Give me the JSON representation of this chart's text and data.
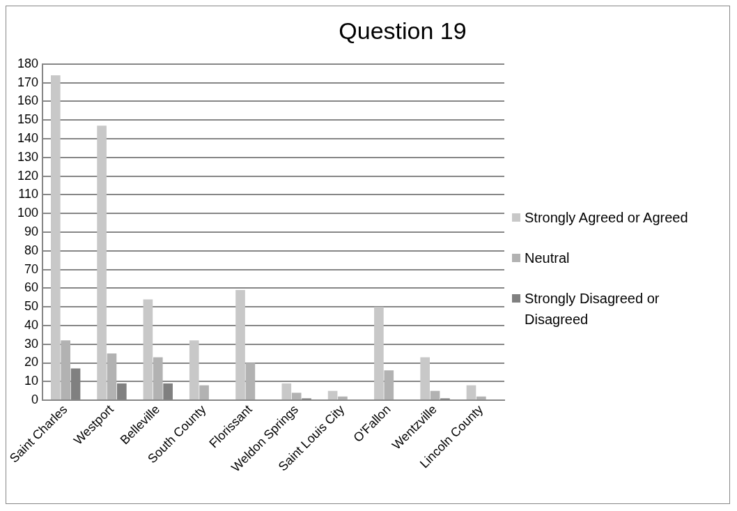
{
  "chart_data": {
    "type": "bar",
    "title": "Question 19",
    "categories": [
      "Saint Charles",
      "Westport",
      "Belleville",
      "South County",
      "Florissant",
      "Weldon Springs",
      "Saint Louis City",
      "O'Fallon",
      "Wentzville",
      "Lincoln County"
    ],
    "series": [
      {
        "name": "Strongly Agreed or Agreed",
        "color": "#c8c8c8",
        "values": [
          174,
          147,
          54,
          32,
          59,
          9,
          5,
          50,
          23,
          8
        ]
      },
      {
        "name": "Neutral",
        "color": "#b2b2b2",
        "values": [
          32,
          25,
          23,
          8,
          20,
          4,
          2,
          16,
          5,
          2
        ]
      },
      {
        "name": "Strongly Disagreed or Disagreed",
        "color": "#808080",
        "values": [
          17,
          9,
          9,
          0,
          0,
          1,
          0,
          0,
          1,
          0
        ]
      }
    ],
    "ylim": [
      0,
      180
    ],
    "yticks": [
      0,
      10,
      20,
      30,
      40,
      50,
      60,
      70,
      80,
      90,
      100,
      110,
      120,
      130,
      140,
      150,
      160,
      170,
      180
    ],
    "grid": "y",
    "legend": "right"
  }
}
